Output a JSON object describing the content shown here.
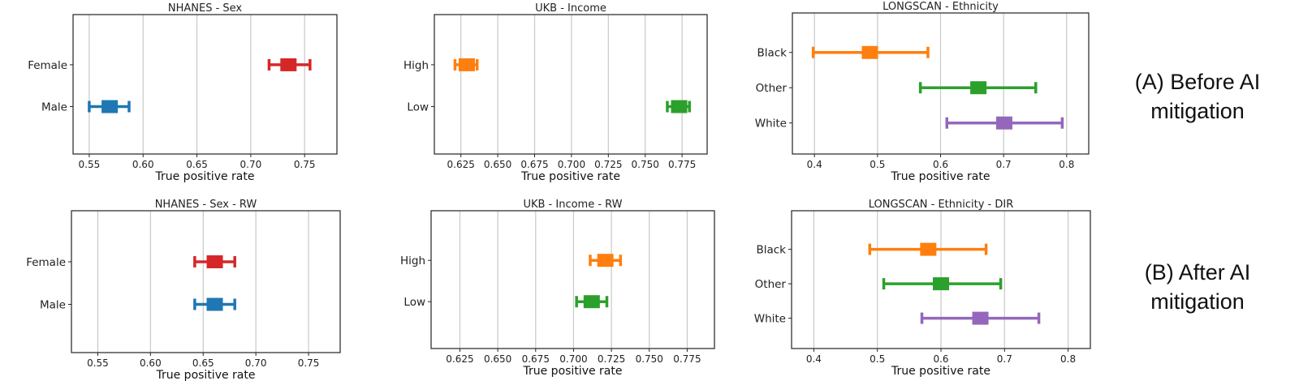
{
  "row_labels": {
    "before": "(A) Before AI mitigation",
    "after": "(B) After AI mitigation"
  },
  "colors": {
    "orange": "#ff7f0e",
    "green": "#2ca02c",
    "purple": "#9467bd",
    "red": "#d62728",
    "blue": "#1f77b4"
  },
  "chart_data": [
    {
      "type": "errorbar",
      "title": "NHANES - Sex",
      "xlabel": "True positive rate",
      "xlim": [
        0.535,
        0.78
      ],
      "xticks": [
        "0.55",
        "0.60",
        "0.65",
        "0.70",
        "0.75"
      ],
      "grid": true,
      "series": [
        {
          "category": "Female",
          "value": 0.735,
          "low": 0.717,
          "high": 0.755,
          "color": "#d62728"
        },
        {
          "category": "Male",
          "value": 0.569,
          "low": 0.55,
          "high": 0.587,
          "color": "#1f77b4"
        }
      ]
    },
    {
      "type": "errorbar",
      "title": "UKB - Income",
      "xlabel": "True positive rate",
      "xlim": [
        0.607,
        0.792
      ],
      "xticks": [
        "0.625",
        "0.650",
        "0.675",
        "0.700",
        "0.725",
        "0.750",
        "0.775"
      ],
      "grid": true,
      "series": [
        {
          "category": "High",
          "value": 0.629,
          "low": 0.621,
          "high": 0.636,
          "color": "#ff7f0e"
        },
        {
          "category": "Low",
          "value": 0.773,
          "low": 0.765,
          "high": 0.78,
          "color": "#2ca02c"
        }
      ]
    },
    {
      "type": "errorbar",
      "title": "LONGSCAN - Ethnicity",
      "xlabel": "True positive rate",
      "xlim": [
        0.365,
        0.835
      ],
      "xticks": [
        "0.4",
        "0.5",
        "0.6",
        "0.7",
        "0.8"
      ],
      "grid": true,
      "series": [
        {
          "category": "Black",
          "value": 0.488,
          "low": 0.398,
          "high": 0.58,
          "color": "#ff7f0e"
        },
        {
          "category": "Other",
          "value": 0.66,
          "low": 0.568,
          "high": 0.751,
          "color": "#2ca02c"
        },
        {
          "category": "White",
          "value": 0.701,
          "low": 0.61,
          "high": 0.793,
          "color": "#9467bd"
        }
      ]
    },
    {
      "type": "errorbar",
      "title": "NHANES - Sex - RW",
      "xlabel": "True positive rate",
      "xlim": [
        0.525,
        0.78
      ],
      "xticks": [
        "0.55",
        "0.60",
        "0.65",
        "0.70",
        "0.75"
      ],
      "grid": true,
      "series": [
        {
          "category": "Female",
          "value": 0.661,
          "low": 0.642,
          "high": 0.68,
          "color": "#d62728"
        },
        {
          "category": "Male",
          "value": 0.661,
          "low": 0.642,
          "high": 0.68,
          "color": "#1f77b4"
        }
      ]
    },
    {
      "type": "errorbar",
      "title": "UKB - Income - RW",
      "xlabel": "True positive rate",
      "xlim": [
        0.606,
        0.793
      ],
      "xticks": [
        "0.625",
        "0.650",
        "0.675",
        "0.700",
        "0.725",
        "0.750",
        "0.775"
      ],
      "grid": true,
      "series": [
        {
          "category": "High",
          "value": 0.721,
          "low": 0.711,
          "high": 0.731,
          "color": "#ff7f0e"
        },
        {
          "category": "Low",
          "value": 0.712,
          "low": 0.702,
          "high": 0.722,
          "color": "#2ca02c"
        }
      ]
    },
    {
      "type": "errorbar",
      "title": "LONGSCAN - Ethnicity - DIR",
      "xlabel": "True positive rate",
      "xlim": [
        0.365,
        0.835
      ],
      "xticks": [
        "0.4",
        "0.5",
        "0.6",
        "0.7",
        "0.8"
      ],
      "grid": true,
      "series": [
        {
          "category": "Black",
          "value": 0.58,
          "low": 0.488,
          "high": 0.671,
          "color": "#ff7f0e"
        },
        {
          "category": "Other",
          "value": 0.6,
          "low": 0.51,
          "high": 0.694,
          "color": "#2ca02c"
        },
        {
          "category": "White",
          "value": 0.662,
          "low": 0.57,
          "high": 0.754,
          "color": "#9467bd"
        }
      ]
    }
  ]
}
